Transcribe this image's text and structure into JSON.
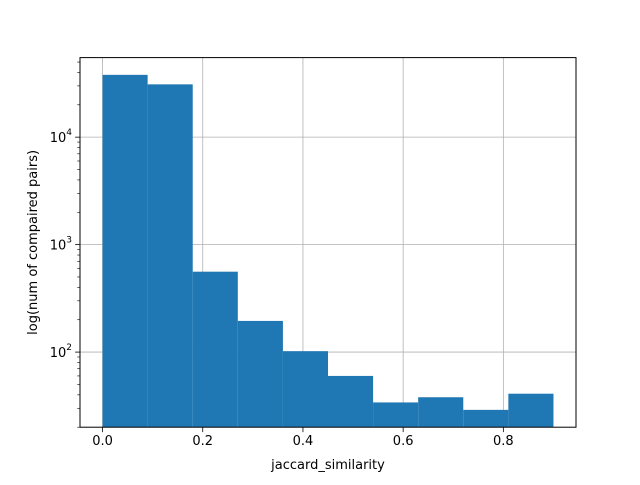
{
  "chart_data": {
    "type": "bar",
    "xlabel": "jaccard_similarity",
    "ylabel": "log(num of compaired pairs)",
    "xlim": [
      -0.045,
      0.945
    ],
    "ylim": [
      20,
      55000
    ],
    "yscale": "log",
    "grid": true,
    "bar_color": "#1f77b4",
    "bins": [
      {
        "x0": 0.0,
        "x1": 0.09,
        "value": 38000
      },
      {
        "x0": 0.09,
        "x1": 0.18,
        "value": 31000
      },
      {
        "x0": 0.18,
        "x1": 0.27,
        "value": 560
      },
      {
        "x0": 0.27,
        "x1": 0.36,
        "value": 195
      },
      {
        "x0": 0.36,
        "x1": 0.45,
        "value": 102
      },
      {
        "x0": 0.45,
        "x1": 0.54,
        "value": 60
      },
      {
        "x0": 0.54,
        "x1": 0.63,
        "value": 34
      },
      {
        "x0": 0.63,
        "x1": 0.72,
        "value": 38
      },
      {
        "x0": 0.72,
        "x1": 0.81,
        "value": 29
      },
      {
        "x0": 0.81,
        "x1": 0.9,
        "value": 41
      }
    ],
    "xticks": [
      {
        "value": 0.0,
        "label": "0.0"
      },
      {
        "value": 0.2,
        "label": "0.2"
      },
      {
        "value": 0.4,
        "label": "0.4"
      },
      {
        "value": 0.6,
        "label": "0.6"
      },
      {
        "value": 0.8,
        "label": "0.8"
      }
    ],
    "yticks": [
      {
        "value": 100,
        "base": "10",
        "exp": "2"
      },
      {
        "value": 1000,
        "base": "10",
        "exp": "3"
      },
      {
        "value": 10000,
        "base": "10",
        "exp": "4"
      }
    ]
  }
}
